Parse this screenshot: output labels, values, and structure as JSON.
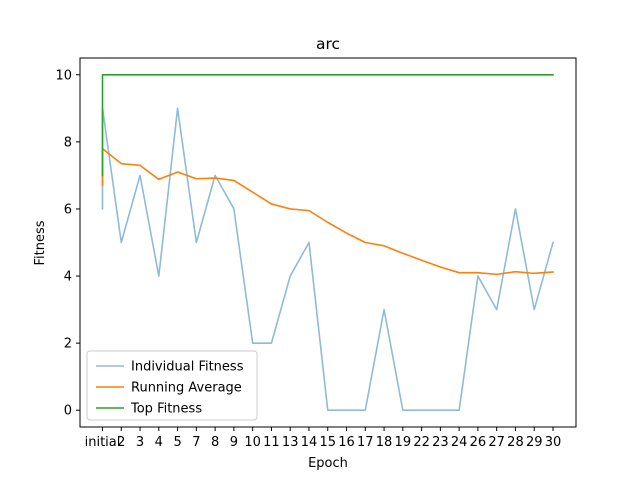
{
  "chart_data": {
    "type": "line",
    "title": "arc",
    "xlabel": "Epoch",
    "ylabel": "Fitness",
    "categories": [
      "initial",
      "2",
      "3",
      "4",
      "5",
      "7",
      "8",
      "9",
      "10",
      "11",
      "13",
      "14",
      "15",
      "16",
      "17",
      "18",
      "19",
      "22",
      "23",
      "24",
      "26",
      "27",
      "28",
      "29",
      "30"
    ],
    "ylim": [
      -0.5,
      10.5
    ],
    "yticks": [
      0,
      2,
      4,
      6,
      8,
      10
    ],
    "grid": false,
    "legend_position": "lower-left",
    "series": [
      {
        "name": "Individual Fitness",
        "color": "#8fbbd9",
        "lead_in": [
          6,
          9
        ],
        "values": [
          9,
          5,
          7,
          4,
          9,
          5,
          7,
          6,
          2,
          2,
          4,
          5,
          0,
          0,
          0,
          3,
          0,
          0,
          0,
          0,
          4,
          3,
          6,
          3,
          5
        ]
      },
      {
        "name": "Running Average",
        "color": "#ff7f0e",
        "lead_in": [
          6.7,
          7.0
        ],
        "values": [
          7.8,
          7.35,
          7.3,
          6.88,
          7.1,
          6.9,
          6.92,
          6.85,
          6.5,
          6.15,
          6.0,
          5.95,
          5.6,
          5.28,
          5.0,
          4.9,
          4.68,
          4.47,
          4.27,
          4.1,
          4.1,
          4.05,
          4.13,
          4.08,
          4.12
        ]
      },
      {
        "name": "Top Fitness",
        "color": "#2ca02c",
        "lead_in": [
          7,
          10
        ],
        "values": [
          10,
          10,
          10,
          10,
          10,
          10,
          10,
          10,
          10,
          10,
          10,
          10,
          10,
          10,
          10,
          10,
          10,
          10,
          10,
          10,
          10,
          10,
          10,
          10,
          10
        ]
      }
    ]
  }
}
